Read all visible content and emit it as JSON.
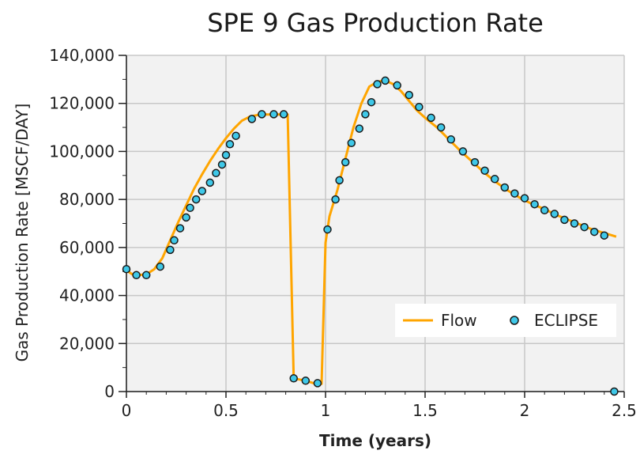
{
  "chart_data": {
    "type": "line",
    "title": "SPE 9 Gas Production Rate",
    "xlabel": "Time (years)",
    "ylabel": "Gas Production Rate [MSCF/DAY]",
    "xlim": [
      0,
      2.5
    ],
    "ylim": [
      0,
      140000
    ],
    "x_ticks": [
      "0",
      "0.5",
      "1",
      "1.5",
      "2",
      "2.5"
    ],
    "y_ticks": [
      "0",
      "20,000",
      "40,000",
      "60,000",
      "80,000",
      "100,000",
      "120,000",
      "140,000"
    ],
    "grid": true,
    "legend_position": "bottom-right",
    "series": [
      {
        "name": "Flow",
        "style": "line",
        "color": "#FFA500",
        "x": [
          0,
          0.03,
          0.06,
          0.1,
          0.14,
          0.18,
          0.22,
          0.26,
          0.3,
          0.34,
          0.38,
          0.42,
          0.46,
          0.5,
          0.54,
          0.58,
          0.62,
          0.66,
          0.7,
          0.74,
          0.78,
          0.81,
          0.84,
          0.9,
          0.94,
          0.98,
          1.0,
          1.02,
          1.06,
          1.1,
          1.14,
          1.18,
          1.22,
          1.26,
          1.3,
          1.34,
          1.38,
          1.42,
          1.46,
          1.5,
          1.56,
          1.62,
          1.68,
          1.74,
          1.8,
          1.86,
          1.92,
          1.98,
          2.04,
          2.1,
          2.16,
          2.22,
          2.28,
          2.34,
          2.4,
          2.46
        ],
        "y": [
          50500,
          48800,
          48500,
          48800,
          51000,
          55500,
          63000,
          70500,
          77500,
          84500,
          90500,
          96000,
          101000,
          105500,
          109500,
          112800,
          114500,
          115200,
          115400,
          115400,
          115400,
          115400,
          5500,
          4500,
          3500,
          3200,
          62000,
          73000,
          84000,
          97000,
          110000,
          120000,
          127000,
          129000,
          129500,
          128000,
          125000,
          121000,
          117000,
          114000,
          110000,
          105000,
          100000,
          95500,
          91000,
          87000,
          83500,
          80500,
          78000,
          76000,
          73500,
          71500,
          69500,
          67500,
          66000,
          64500
        ]
      },
      {
        "name": "ECLIPSE",
        "style": "markers",
        "color": "#3FC8E8",
        "x": [
          0,
          0.05,
          0.1,
          0.17,
          0.22,
          0.24,
          0.27,
          0.3,
          0.32,
          0.35,
          0.38,
          0.42,
          0.45,
          0.48,
          0.5,
          0.52,
          0.55,
          0.63,
          0.68,
          0.74,
          0.79,
          0.84,
          0.9,
          0.96,
          1.01,
          1.05,
          1.07,
          1.1,
          1.13,
          1.17,
          1.2,
          1.23,
          1.26,
          1.3,
          1.36,
          1.42,
          1.47,
          1.53,
          1.58,
          1.63,
          1.69,
          1.75,
          1.8,
          1.85,
          1.9,
          1.95,
          2.0,
          2.05,
          2.1,
          2.15,
          2.2,
          2.25,
          2.3,
          2.35,
          2.4,
          2.45
        ],
        "y": [
          51000,
          48500,
          48500,
          52000,
          59000,
          63000,
          68000,
          72500,
          76500,
          80000,
          83500,
          87000,
          91000,
          94500,
          98500,
          103000,
          106500,
          113500,
          115500,
          115500,
          115500,
          5500,
          4500,
          3500,
          67500,
          80000,
          88000,
          95500,
          103500,
          109500,
          115500,
          120500,
          128000,
          129500,
          127500,
          123500,
          118500,
          114000,
          110000,
          105000,
          100000,
          95500,
          92000,
          88500,
          85000,
          82500,
          80500,
          78000,
          75500,
          74000,
          71500,
          70000,
          68500,
          66500,
          65000,
          0
        ]
      }
    ]
  },
  "legend": {
    "flow_label": "Flow",
    "eclipse_label": "ECLIPSE"
  }
}
